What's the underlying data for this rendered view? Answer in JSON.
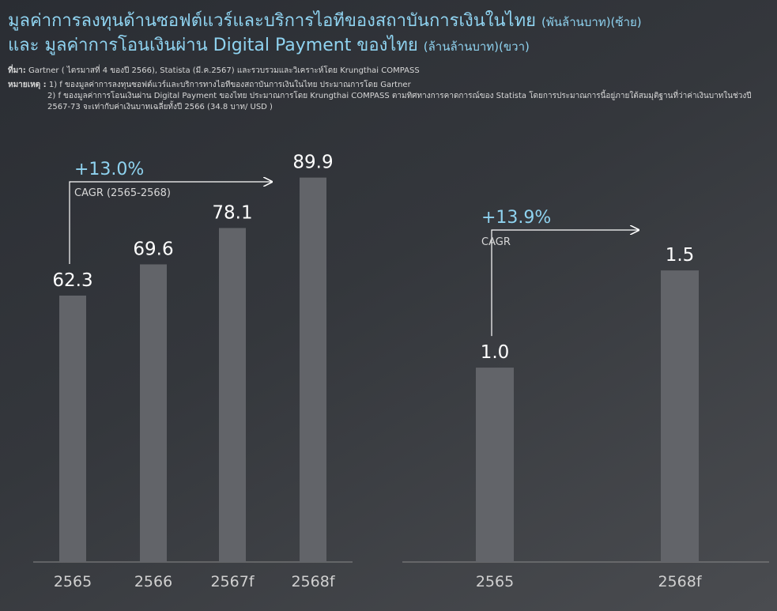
{
  "header": {
    "title_line1": "มูลค่าการลงทุนด้านซอฟต์แวร์และบริการไอทีของสถาบันการเงินในไทย",
    "title_line1_unit": "(พันล้านบาท)(ซ้าย)",
    "title_line2": "และ มูลค่าการโอนเงินผ่าน Digital Payment ของไทย",
    "title_line2_unit": "(ล้านล้านบาท)(ขวา)"
  },
  "source": {
    "label": "ที่มา:",
    "text": "Gartner ( ไตรมาสที่ 4 ของปี 2566), Statista (มี.ค.2567) และรวบรวมและวิเคราะห์โดย Krungthai COMPASS"
  },
  "notes": {
    "label": "หมายเหตุ :",
    "note1": "1) f ของมูลค่าการลงทุนซอฟต์แวร์และบริการทางไอทีของสถาบันการเงินในไทย ประมาณการโดย Gartner",
    "note2": "2) f ของมูลค่าการโอนเงินผ่าน Digital Payment ของไทย ประมาณการโดย Krungthai COMPASS ตามทิศทางการคาดการณ์ของ Statista โดยการประมาณการนี้อยู่ภายใต้สมมุติฐานที่ว่าค่าเงินบาทในช่วงปี 2567-73 จะเท่ากับค่าเงินบาทเฉลี่ยทั้งปี 2566 (34.8 บาท/ USD )"
  },
  "colors": {
    "bar": "#626469",
    "accent": "#8fd3f0",
    "axis": "#8a8a8a",
    "arrow": "#ffffff"
  },
  "chart_data": [
    {
      "type": "bar",
      "categories": [
        "2565",
        "2566",
        "2567f",
        "2568f"
      ],
      "values": [
        62.3,
        69.6,
        78.1,
        89.9
      ],
      "value_labels": [
        "62.3",
        "69.6",
        "78.1",
        "89.9"
      ],
      "ylim": [
        0,
        100
      ],
      "annotation": {
        "value": "+13.0%",
        "label": "CAGR (2565-2568)"
      }
    },
    {
      "type": "bar",
      "categories": [
        "2565",
        "2568f"
      ],
      "values": [
        1.0,
        1.5
      ],
      "value_labels": [
        "1.0",
        "1.5"
      ],
      "ylim": [
        0,
        2.2
      ],
      "annotation": {
        "value": "+13.9%",
        "label": "CAGR"
      }
    }
  ]
}
